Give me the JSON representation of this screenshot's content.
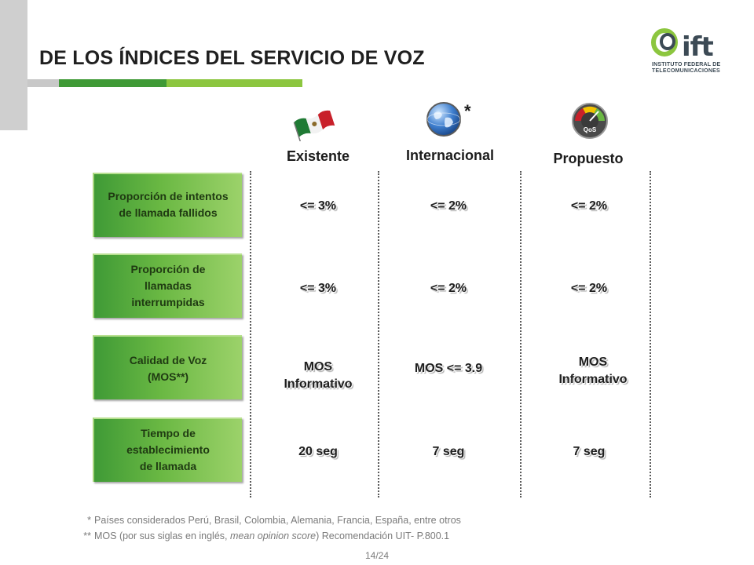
{
  "slide": {
    "title": "DE LOS ÍNDICES DEL SERVICIO DE VOZ",
    "page": "14/24"
  },
  "logo": {
    "name": "ift",
    "subtitle_lines": [
      "INSTITUTO FEDERAL DE",
      "TELECOMUNICACIONES"
    ],
    "colors": {
      "green": "#8cc63f",
      "dark": "#3c4a55"
    }
  },
  "columns": [
    {
      "label": "Existente",
      "icon": "mexico-flag-icon"
    },
    {
      "label": "Internacional",
      "icon": "globe-icon",
      "mark": "*"
    },
    {
      "label": "Propuesto",
      "icon": "qos-gauge-icon",
      "icon_text": "QoS"
    }
  ],
  "rows": [
    {
      "label_lines": [
        "Proporción de intentos",
        "de llamada fallidos"
      ],
      "values": [
        [
          "<= 3%"
        ],
        [
          "<= 2%"
        ],
        [
          "<= 2%"
        ]
      ]
    },
    {
      "label_lines": [
        "Proporción de",
        "llamadas",
        "interrumpidas"
      ],
      "values": [
        [
          "<= 3%"
        ],
        [
          "<= 2%"
        ],
        [
          "<= 2%"
        ]
      ]
    },
    {
      "label_lines": [
        "Calidad de Voz",
        "(MOS**)"
      ],
      "values": [
        [
          "MOS",
          "Informativo"
        ],
        [
          "MOS <= 3.9"
        ],
        [
          "MOS",
          "Informativo"
        ]
      ]
    },
    {
      "label_lines": [
        "Tiempo de",
        "establecimiento",
        "de llamada"
      ],
      "values": [
        [
          "20 seg"
        ],
        [
          "7 seg"
        ],
        [
          "7 seg"
        ]
      ]
    }
  ],
  "footnotes": [
    {
      "mark": "*",
      "text": "Países considerados Perú, Brasil, Colombia, Alemania, Francia, España, entre otros"
    },
    {
      "mark": "**",
      "text_before": "MOS (por sus siglas en inglés, ",
      "text_italic": "mean opinion score",
      "text_after": ") Recomendación UIT- P.800.1"
    }
  ],
  "theme": {
    "green_dark": "#3f9a36",
    "green_light": "#8cc63f",
    "gray": "#c8c8c8"
  }
}
